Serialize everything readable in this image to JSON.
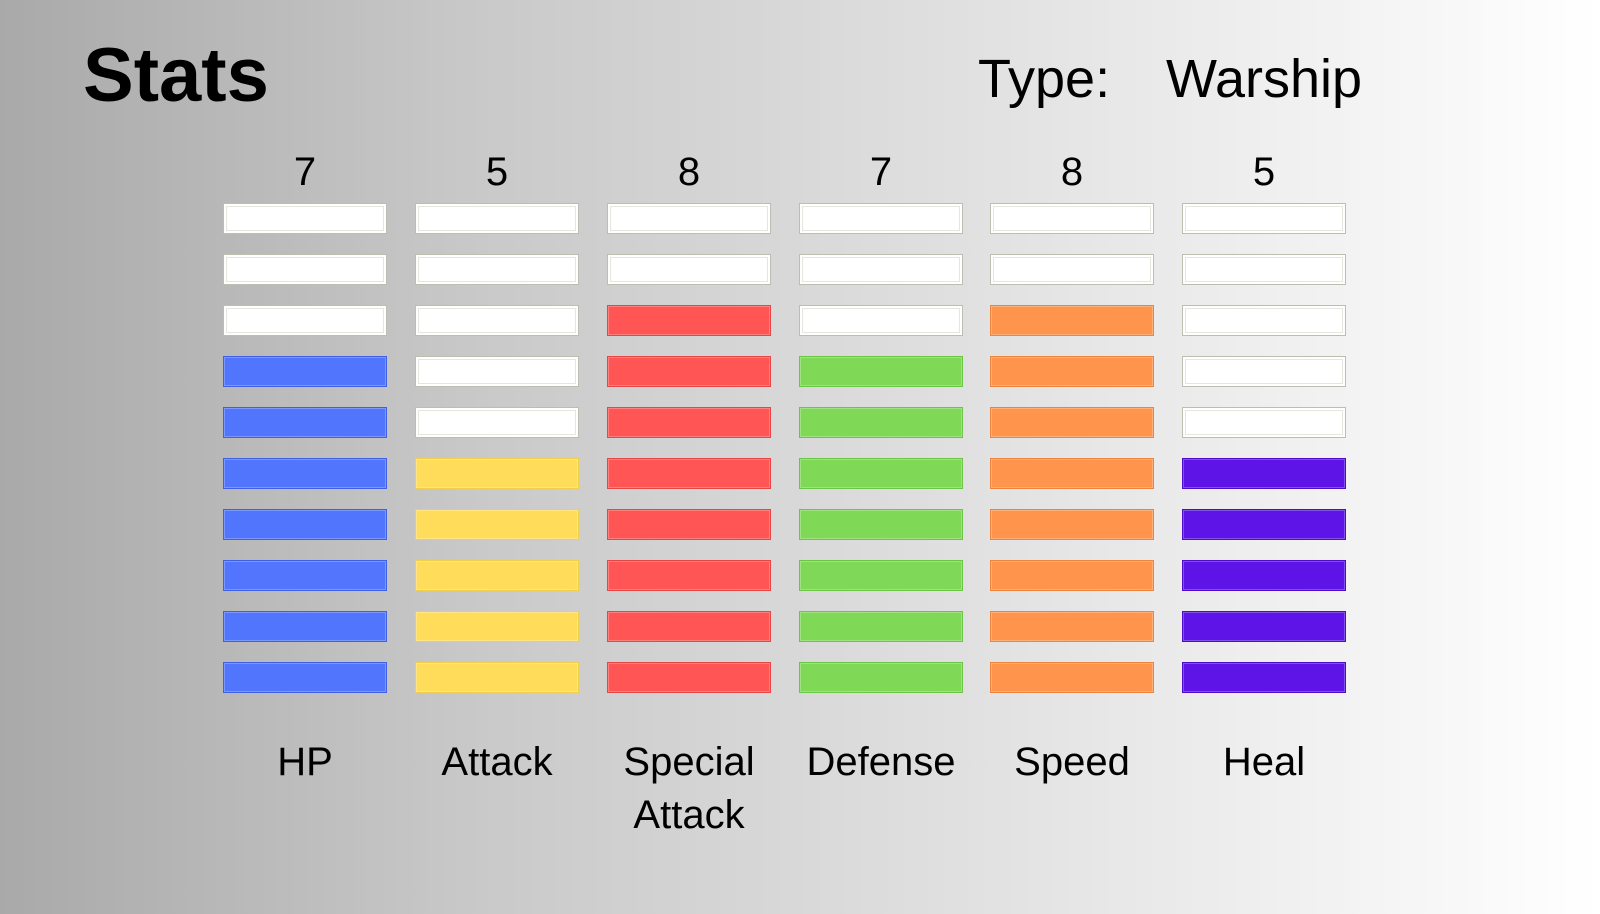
{
  "header": {
    "title": "Stats",
    "type_label": "Type:",
    "type_value": "Warship"
  },
  "stats": {
    "max": 10,
    "items": [
      {
        "label": "HP",
        "value": 7,
        "color": "#5175fd",
        "border": "#3f5fe6"
      },
      {
        "label": "Attack",
        "value": 5,
        "color": "#ffdd5a",
        "border": "#f2cf4a"
      },
      {
        "label": "Special Attack",
        "value": 8,
        "color": "#ff5555",
        "border": "#e84545"
      },
      {
        "label": "Defense",
        "value": 7,
        "color": "#7fd957",
        "border": "#6cc546"
      },
      {
        "label": "Speed",
        "value": 8,
        "color": "#ff944c",
        "border": "#ee833d"
      },
      {
        "label": "Heal",
        "value": 5,
        "color": "#5e14e7",
        "border": "#4d0ccb"
      }
    ]
  }
}
